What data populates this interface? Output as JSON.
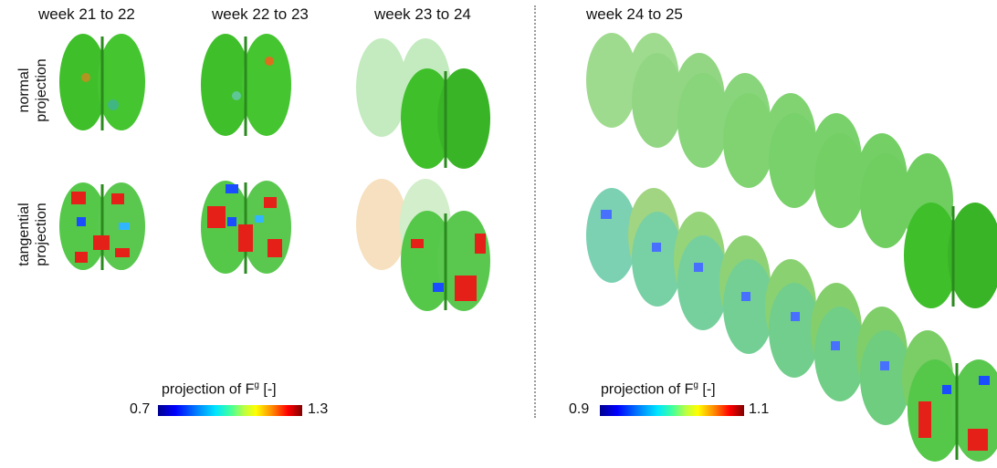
{
  "columns": [
    "week 21 to 22",
    "week 22 to 23",
    "week 23 to 24",
    "week 24 to 25"
  ],
  "rows": [
    {
      "line1": "normal",
      "line2": "projection"
    },
    {
      "line1": "tangential",
      "line2": "projection"
    }
  ],
  "colorbar_left": {
    "title": "projection of F",
    "superscript": "g",
    "unit": " [-]",
    "min": "0.7",
    "max": "1.3"
  },
  "colorbar_right": {
    "title": "projection of F",
    "superscript": "g",
    "unit": "  [-]",
    "min": "0.9",
    "max": "1.1"
  },
  "colors": {
    "normal_brain": "#3fbf2a",
    "tangential_brain": "#55c84a",
    "divider": "#9a9a9a"
  }
}
